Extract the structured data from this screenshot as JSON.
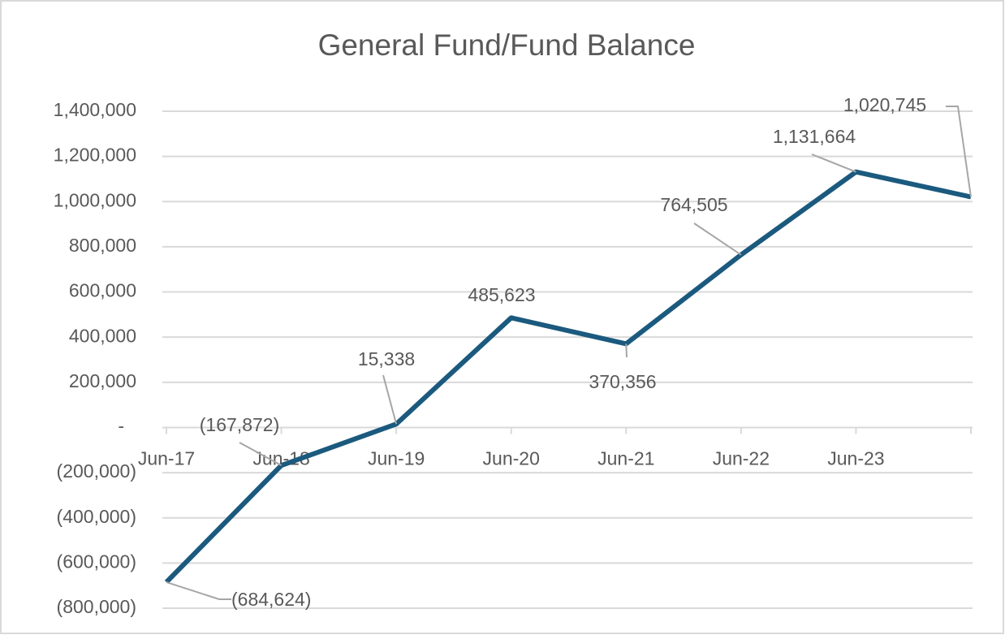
{
  "chart_data": {
    "type": "line",
    "title": "General Fund/Fund Balance",
    "categories": [
      "Jun-17",
      "Jun-18",
      "Jun-19",
      "Jun-20",
      "Jun-21",
      "Jun-22",
      "Jun-23",
      null
    ],
    "values": [
      -684624,
      -167872,
      15338,
      485623,
      370356,
      764505,
      1131664,
      1020745
    ],
    "value_labels": [
      "(684,624)",
      "(167,872)",
      "15,338",
      "485,623",
      "370,356",
      "764,505",
      "1,131,664",
      "1,020,745"
    ],
    "color": "#1b5a7e",
    "ylim": [
      -800000,
      1400000
    ],
    "yticks": [
      {
        "value": -800000,
        "label": "(800,000)"
      },
      {
        "value": -600000,
        "label": "(600,000)"
      },
      {
        "value": -400000,
        "label": "(400,000)"
      },
      {
        "value": -200000,
        "label": "(200,000)"
      },
      {
        "value": 0,
        "label": "-"
      },
      {
        "value": 200000,
        "label": "200,000"
      },
      {
        "value": 400000,
        "label": "400,000"
      },
      {
        "value": 600000,
        "label": "600,000"
      },
      {
        "value": 800000,
        "label": "800,000"
      },
      {
        "value": 1000000,
        "label": "1,000,000"
      },
      {
        "value": 1200000,
        "label": "1,200,000"
      },
      {
        "value": 1400000,
        "label": "1,400,000"
      }
    ],
    "grid": true
  }
}
